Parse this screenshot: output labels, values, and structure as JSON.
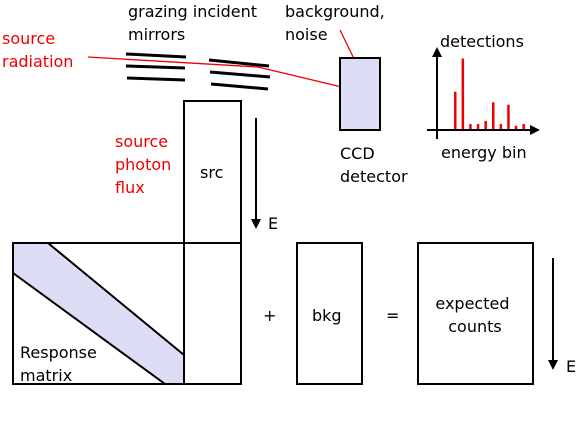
{
  "colors": {
    "red": "#ee0000",
    "band_fill": "#dcdcf5",
    "ccd_fill": "#dcdcf5",
    "stroke": "#000000"
  },
  "labels": {
    "source_radiation": [
      "source",
      "radiation"
    ],
    "mirrors": [
      "grazing incident",
      "mirrors"
    ],
    "background": [
      "background,",
      "noise"
    ],
    "detections": "detections",
    "energy_bin": "energy bin",
    "ccd": [
      "CCD",
      "detector"
    ],
    "source_photon_flux": [
      "source",
      "photon",
      "flux"
    ],
    "src": "src",
    "energy_axis_top": "E",
    "energy_axis_bottom": "E",
    "response_matrix": [
      "Response",
      "matrix"
    ],
    "plus": "+",
    "bkg": "bkg",
    "equals": "=",
    "expected_counts": [
      "expected",
      "counts"
    ]
  },
  "histogram": {
    "heights": [
      0.46,
      0.87,
      0.06,
      0.06,
      0.1,
      0.33,
      0.06,
      0.3,
      0.04,
      0.06
    ]
  }
}
